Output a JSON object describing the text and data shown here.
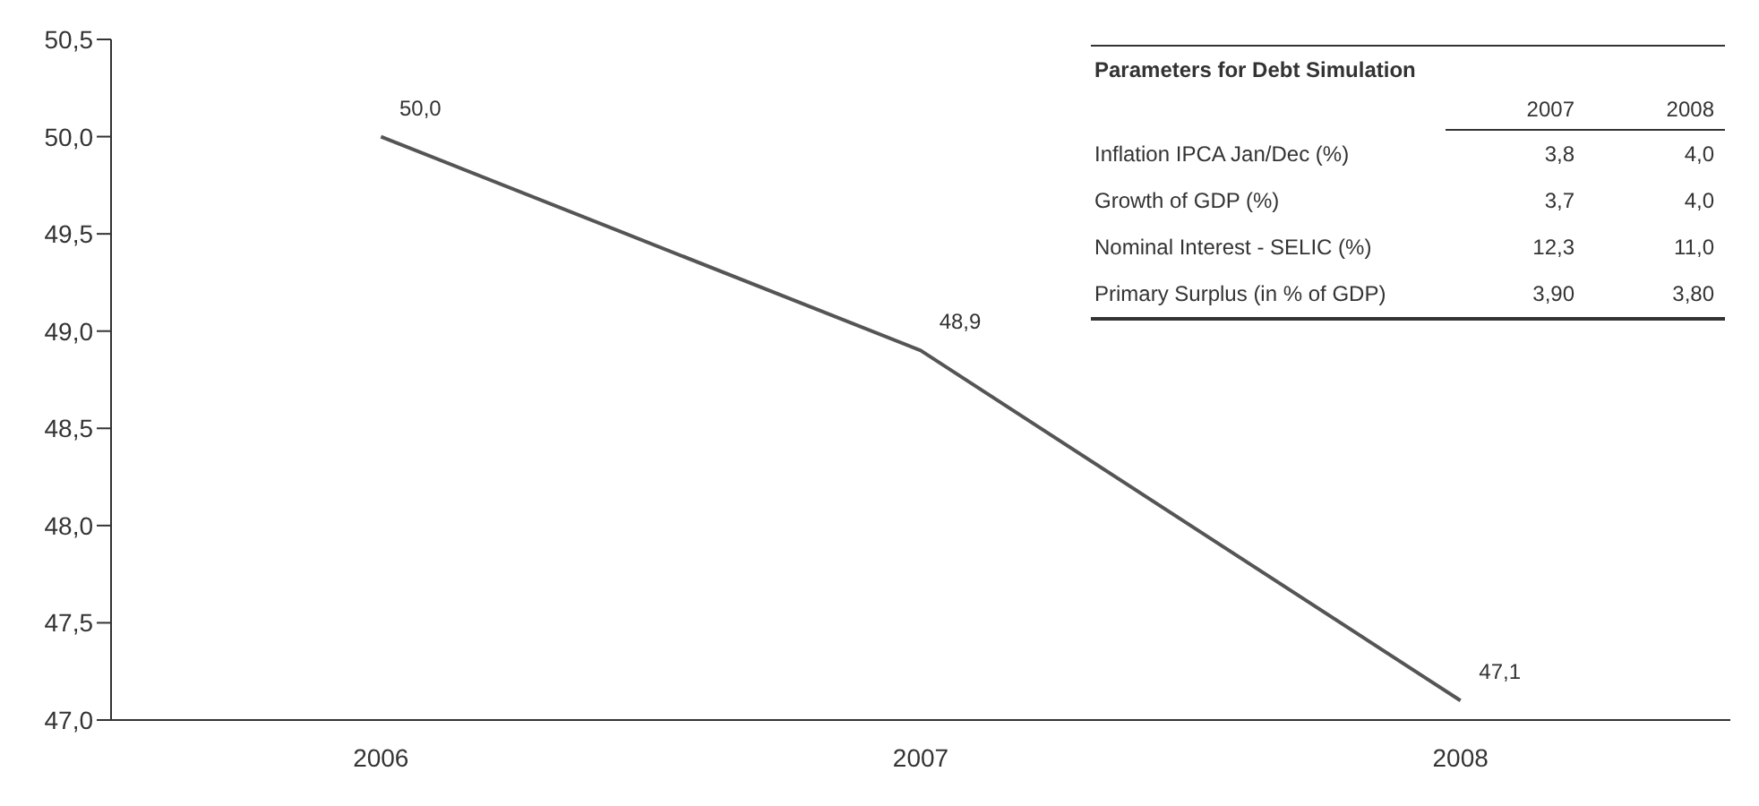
{
  "chart_data": [
    {
      "type": "line",
      "categories": [
        "2006",
        "2007",
        "2008"
      ],
      "series": [
        {
          "color": "#555555",
          "values": [
            50.0,
            48.9,
            47.1
          ],
          "value_labels": [
            "50,0",
            "48,9",
            "47,1"
          ]
        }
      ],
      "ylim": [
        47,
        50.5
      ],
      "yticks": [
        {
          "value": 47,
          "label": "47,0"
        },
        {
          "value": 47.5,
          "label": "47,5"
        },
        {
          "value": 48,
          "label": "48,0"
        },
        {
          "value": 48.5,
          "label": "48,5"
        },
        {
          "value": 49,
          "label": "49,0"
        },
        {
          "value": 49.5,
          "label": "49,5"
        },
        {
          "value": 50,
          "label": "50,0"
        },
        {
          "value": 50.5,
          "label": "50,5"
        }
      ],
      "marker": "none",
      "line_style": "solid"
    },
    {
      "type": "other",
      "title": "Parameters for Debt Simulation",
      "categories": [
        "2007",
        "2008"
      ],
      "y_categories": [
        "Inflation IPCA Jan/Dec (%)",
        "Growth of GDP (%)",
        "Nominal Interest - SELIC (%)",
        "Primary Surplus (in % of GDP)"
      ],
      "cell_labels": [
        [
          "3,8",
          "4,0"
        ],
        [
          "3,7",
          "4,0"
        ],
        [
          "12,3",
          "11,0"
        ],
        [
          "3,90",
          "3,80"
        ]
      ]
    }
  ]
}
